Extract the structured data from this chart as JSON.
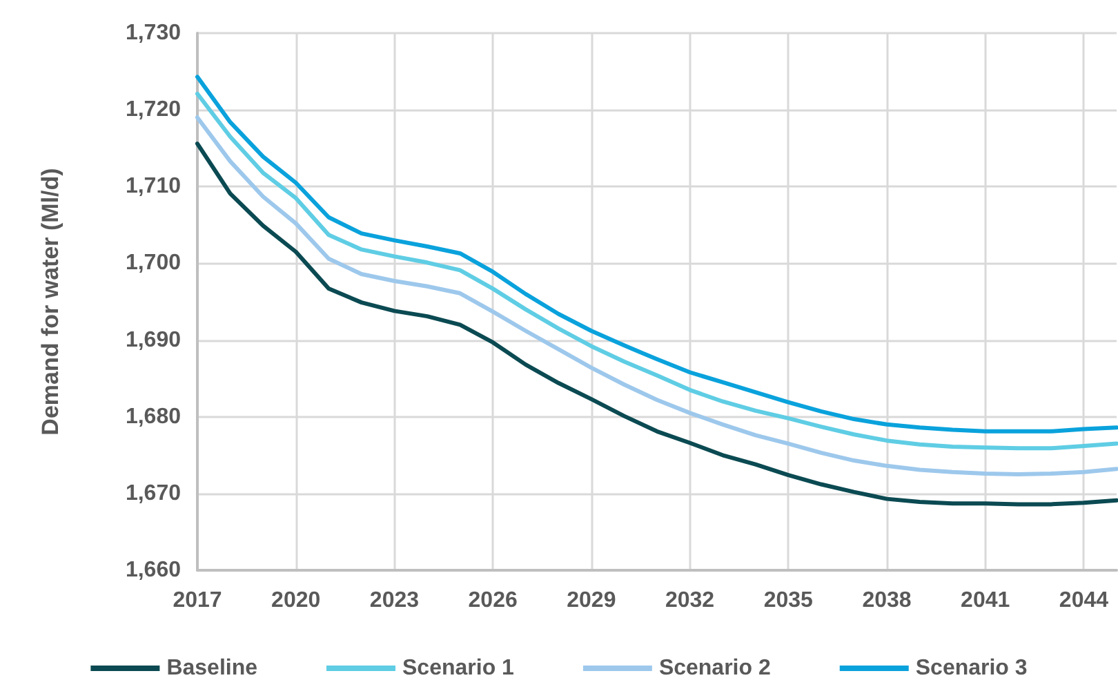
{
  "chart_data": {
    "type": "line",
    "ylabel": "Demand for water (Ml/d)",
    "x": [
      2017,
      2018,
      2019,
      2020,
      2021,
      2022,
      2023,
      2024,
      2025,
      2026,
      2027,
      2028,
      2029,
      2030,
      2031,
      2032,
      2033,
      2034,
      2035,
      2036,
      2037,
      2038,
      2039,
      2040,
      2041,
      2042,
      2043,
      2044,
      2045
    ],
    "series": [
      {
        "name": "Baseline",
        "color": "#0b4a52",
        "values": [
          1715.6,
          1709.1,
          1704.9,
          1701.5,
          1696.7,
          1694.9,
          1693.8,
          1693.1,
          1692.0,
          1689.7,
          1686.8,
          1684.4,
          1682.3,
          1680.1,
          1678.1,
          1676.6,
          1675.0,
          1673.8,
          1672.4,
          1671.2,
          1670.2,
          1669.3,
          1668.9,
          1668.7,
          1668.7,
          1668.6,
          1668.6,
          1668.8,
          1669.1
        ]
      },
      {
        "name": "Scenario 1",
        "color": "#5fcde4",
        "values": [
          1722.1,
          1716.5,
          1711.8,
          1708.5,
          1703.7,
          1701.8,
          1700.9,
          1700.1,
          1699.1,
          1696.7,
          1694.0,
          1691.5,
          1689.2,
          1687.2,
          1685.4,
          1683.5,
          1682.0,
          1680.8,
          1679.8,
          1678.7,
          1677.7,
          1676.9,
          1676.4,
          1676.1,
          1676.0,
          1675.9,
          1675.9,
          1676.2,
          1676.5
        ]
      },
      {
        "name": "Scenario 2",
        "color": "#9dc8ec",
        "values": [
          1719.0,
          1713.3,
          1708.7,
          1705.2,
          1700.6,
          1698.6,
          1697.7,
          1697.0,
          1696.1,
          1693.7,
          1691.2,
          1688.8,
          1686.4,
          1684.2,
          1682.2,
          1680.5,
          1679.0,
          1677.6,
          1676.5,
          1675.3,
          1674.3,
          1673.6,
          1673.1,
          1672.8,
          1672.6,
          1672.5,
          1672.6,
          1672.8,
          1673.2
        ]
      },
      {
        "name": "Scenario 3",
        "color": "#0aa2dc",
        "values": [
          1724.3,
          1718.4,
          1713.9,
          1710.5,
          1706.0,
          1703.9,
          1703.0,
          1702.2,
          1701.3,
          1698.9,
          1696.0,
          1693.4,
          1691.2,
          1689.3,
          1687.5,
          1685.8,
          1684.5,
          1683.2,
          1681.9,
          1680.7,
          1679.7,
          1679.0,
          1678.6,
          1678.3,
          1678.1,
          1678.1,
          1678.1,
          1678.4,
          1678.6
        ]
      }
    ],
    "xlim": [
      2017,
      2045
    ],
    "xticks": [
      2017,
      2020,
      2023,
      2026,
      2029,
      2032,
      2035,
      2038,
      2041,
      2044
    ],
    "ylim": [
      1660,
      1730
    ],
    "yticks": [
      {
        "value": 1660,
        "label": "1,660"
      },
      {
        "value": 1670,
        "label": "1,670"
      },
      {
        "value": 1680,
        "label": "1,680"
      },
      {
        "value": 1690,
        "label": "1,690"
      },
      {
        "value": 1700,
        "label": "1,700"
      },
      {
        "value": 1710,
        "label": "1,710"
      },
      {
        "value": 1720,
        "label": "1,720"
      },
      {
        "value": 1730,
        "label": "1,730"
      }
    ],
    "grid": true,
    "legend": "bottom",
    "marker": "none",
    "line_style": "solid"
  }
}
